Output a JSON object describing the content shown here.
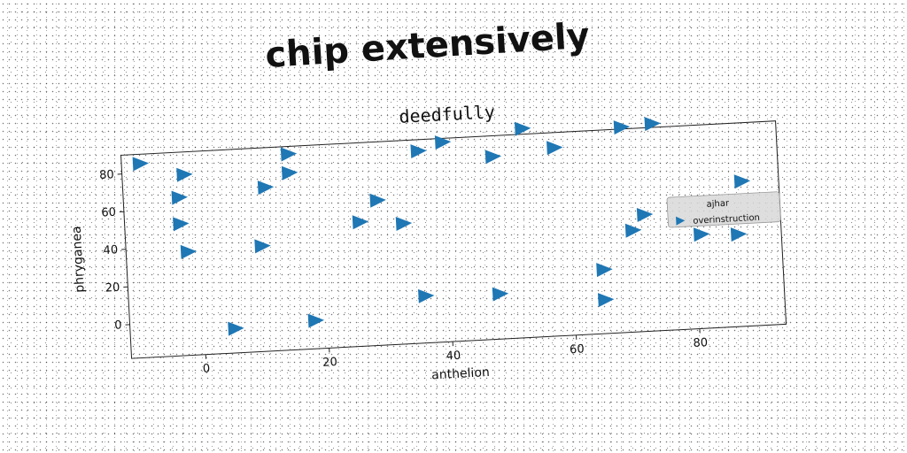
{
  "headline": "chip extensively",
  "chart_data": {
    "type": "scatter",
    "title": "deedfully",
    "xlabel": "anthelion",
    "ylabel": "phryganea",
    "xlim": [
      -12,
      94
    ],
    "ylim": [
      -18,
      90
    ],
    "xticks": [
      0,
      20,
      40,
      60,
      80
    ],
    "yticks": [
      0,
      20,
      40,
      60,
      80
    ],
    "grid": false,
    "marker": "triangle-right",
    "legend": {
      "title": "ajhar",
      "placement": "right",
      "entries": [
        "overinstruction"
      ]
    },
    "series": [
      {
        "name": "overinstruction",
        "color": "#1f77b4",
        "points": [
          {
            "x": -9,
            "y": 85
          },
          {
            "x": -2,
            "y": 78
          },
          {
            "x": -3,
            "y": 66
          },
          {
            "x": -3,
            "y": 52
          },
          {
            "x": -2,
            "y": 37
          },
          {
            "x": 5,
            "y": -5
          },
          {
            "x": 11,
            "y": 69
          },
          {
            "x": 10,
            "y": 38
          },
          {
            "x": 15,
            "y": 86
          },
          {
            "x": 15,
            "y": 76
          },
          {
            "x": 18,
            "y": -3
          },
          {
            "x": 26,
            "y": 48
          },
          {
            "x": 29,
            "y": 59
          },
          {
            "x": 33,
            "y": 46
          },
          {
            "x": 36,
            "y": 84
          },
          {
            "x": 36,
            "y": 7
          },
          {
            "x": 40,
            "y": 88
          },
          {
            "x": 48,
            "y": 79
          },
          {
            "x": 48,
            "y": 6
          },
          {
            "x": 53,
            "y": 93
          },
          {
            "x": 58,
            "y": 82
          },
          {
            "x": 65,
            "y": 16
          },
          {
            "x": 65,
            "y": 0
          },
          {
            "x": 69,
            "y": 91
          },
          {
            "x": 70,
            "y": 36
          },
          {
            "x": 72,
            "y": 44
          },
          {
            "x": 74,
            "y": 92
          },
          {
            "x": 81,
            "y": 32
          },
          {
            "x": 87,
            "y": 31
          },
          {
            "x": 88,
            "y": 59
          }
        ]
      }
    ]
  }
}
